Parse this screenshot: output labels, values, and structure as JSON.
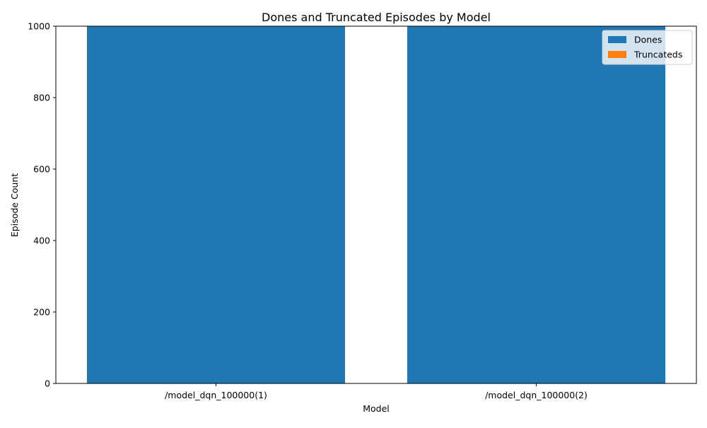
{
  "chart_data": {
    "type": "bar",
    "stacked": true,
    "title": "Dones and Truncated Episodes by Model",
    "xlabel": "Model",
    "ylabel": "Episode Count",
    "categories": [
      "/model_dqn_100000(1)",
      "/model_dqn_100000(2)"
    ],
    "series": [
      {
        "name": "Dones",
        "values": [
          1000,
          1000
        ],
        "color": "#1f77b4"
      },
      {
        "name": "Truncateds",
        "values": [
          0,
          0
        ],
        "color": "#ff7f0e"
      }
    ],
    "ylim": [
      0,
      1000
    ],
    "yticks": [
      0,
      200,
      400,
      600,
      800,
      1000
    ],
    "grid": false,
    "legend_position": "top-right"
  }
}
